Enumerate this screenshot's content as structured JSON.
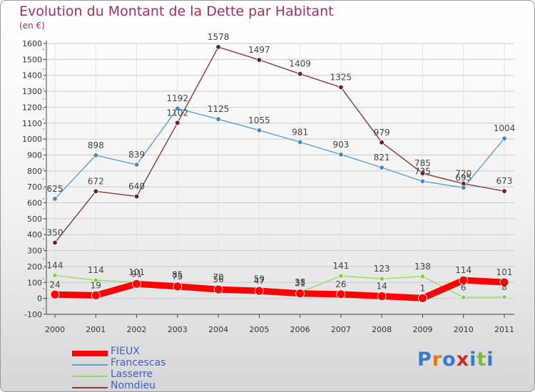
{
  "header": {
    "title": "Evolution du Montant de la Dette par Habitant",
    "subtitle": "(en €)"
  },
  "logo": {
    "text": "Proxiti"
  },
  "colors": {
    "title": "#a0306a",
    "grid": "#cccccc",
    "axis": "#444444",
    "FIEUX": "#ff0000",
    "Francescas": "#5b9fd4",
    "Lasserre": "#90e060",
    "Nomdieu": "#8b3a3a"
  },
  "chart_data": {
    "type": "line",
    "title": "Evolution du Montant de la Dette par Habitant",
    "subtitle": "(en €)",
    "xlabel": "",
    "ylabel": "",
    "x": [
      "2000",
      "2001",
      "2002",
      "2003",
      "2004",
      "2005",
      "2006",
      "2007",
      "2008",
      "2009",
      "2010",
      "2011"
    ],
    "ylim": [
      -100,
      1600
    ],
    "yticks": [
      -100,
      0,
      100,
      200,
      300,
      400,
      500,
      600,
      700,
      800,
      900,
      1000,
      1100,
      1200,
      1300,
      1400,
      1500,
      1600
    ],
    "grid": true,
    "legend": "bottom-left",
    "series": [
      {
        "name": "FIEUX",
        "values": [
          24,
          19,
          91,
          75,
          56,
          47,
          31,
          26,
          14,
          1,
          114,
          101
        ],
        "labels": [
          "24",
          "19",
          "91",
          "75",
          "56",
          "47",
          "31",
          "26",
          "14",
          "1",
          "114",
          "101"
        ]
      },
      {
        "name": "Francescas",
        "values": [
          625,
          898,
          839,
          1192,
          1125,
          1055,
          981,
          903,
          821,
          735,
          695,
          1004
        ],
        "labels": [
          "625",
          "898",
          "839",
          "1192",
          "1125",
          "1055",
          "981",
          "903",
          "821",
          "735",
          "695",
          "1004"
        ]
      },
      {
        "name": "Lasserre",
        "values": [
          144,
          114,
          101,
          85,
          70,
          59,
          38,
          141,
          123,
          138,
          6,
          8
        ],
        "labels": [
          "144",
          "114",
          "101",
          "85",
          "70",
          "59",
          "38",
          "141",
          "123",
          "138",
          "6",
          "8"
        ]
      },
      {
        "name": "Nomdieu",
        "values": [
          350,
          672,
          640,
          1102,
          1578,
          1497,
          1409,
          1325,
          979,
          785,
          720,
          673
        ],
        "labels": [
          "350",
          "672",
          "640",
          "1102",
          "1578",
          "1497",
          "1409",
          "1325",
          "979",
          "785",
          "720",
          "673"
        ]
      }
    ]
  }
}
